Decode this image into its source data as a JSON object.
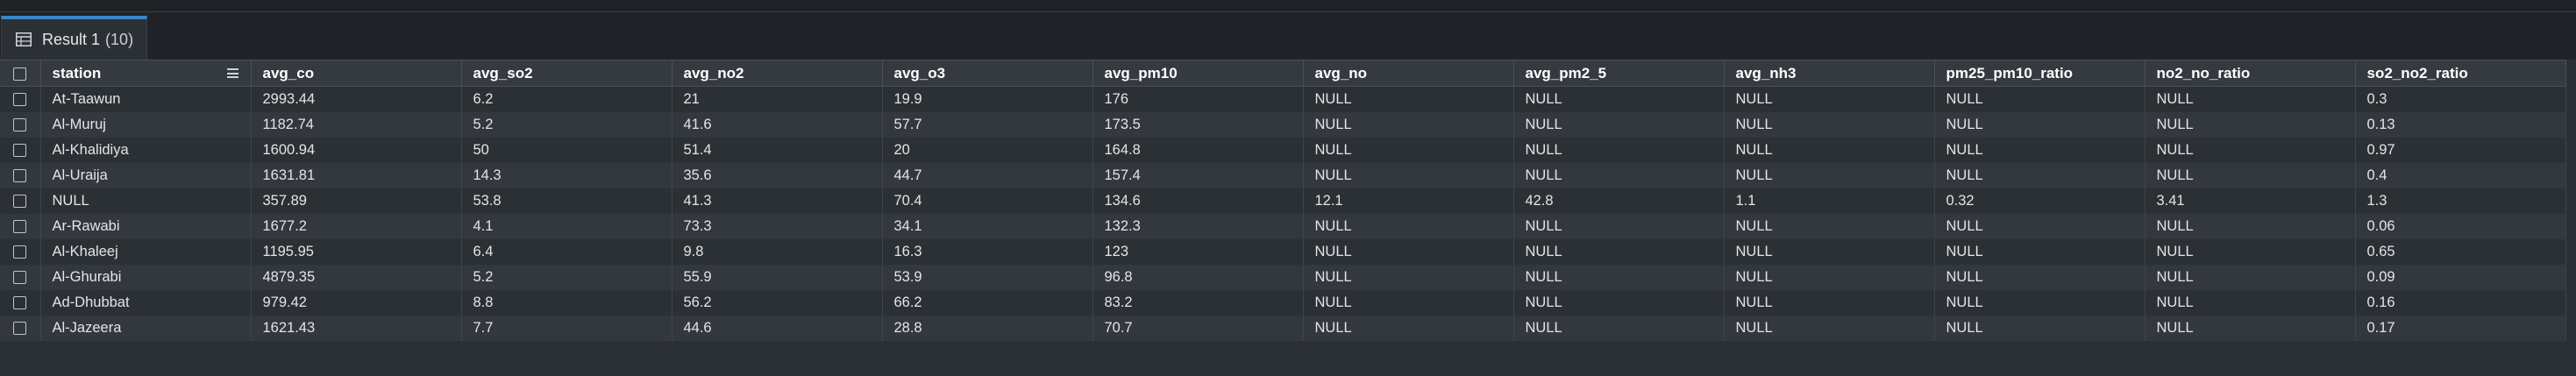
{
  "tab": {
    "label": "Result 1",
    "count": "(10)"
  },
  "columns": [
    {
      "key": "station",
      "label": "station"
    },
    {
      "key": "avg_co",
      "label": "avg_co"
    },
    {
      "key": "avg_so2",
      "label": "avg_so2"
    },
    {
      "key": "avg_no2",
      "label": "avg_no2"
    },
    {
      "key": "avg_o3",
      "label": "avg_o3"
    },
    {
      "key": "avg_pm10",
      "label": "avg_pm10"
    },
    {
      "key": "avg_no",
      "label": "avg_no"
    },
    {
      "key": "avg_pm2_5",
      "label": "avg_pm2_5"
    },
    {
      "key": "avg_nh3",
      "label": "avg_nh3"
    },
    {
      "key": "pm25_pm10_ratio",
      "label": "pm25_pm10_ratio"
    },
    {
      "key": "no2_no_ratio",
      "label": "no2_no_ratio"
    },
    {
      "key": "so2_no2_ratio",
      "label": "so2_no2_ratio"
    }
  ],
  "rows": [
    [
      "At-Taawun",
      "2993.44",
      "6.2",
      "21",
      "19.9",
      "176",
      "NULL",
      "NULL",
      "NULL",
      "NULL",
      "NULL",
      "0.3"
    ],
    [
      "Al-Muruj",
      "1182.74",
      "5.2",
      "41.6",
      "57.7",
      "173.5",
      "NULL",
      "NULL",
      "NULL",
      "NULL",
      "NULL",
      "0.13"
    ],
    [
      "Al-Khalidiya",
      "1600.94",
      "50",
      "51.4",
      "20",
      "164.8",
      "NULL",
      "NULL",
      "NULL",
      "NULL",
      "NULL",
      "0.97"
    ],
    [
      "Al-Uraija",
      "1631.81",
      "14.3",
      "35.6",
      "44.7",
      "157.4",
      "NULL",
      "NULL",
      "NULL",
      "NULL",
      "NULL",
      "0.4"
    ],
    [
      "NULL",
      "357.89",
      "53.8",
      "41.3",
      "70.4",
      "134.6",
      "12.1",
      "42.8",
      "1.1",
      "0.32",
      "3.41",
      "1.3"
    ],
    [
      "Ar-Rawabi",
      "1677.2",
      "4.1",
      "73.3",
      "34.1",
      "132.3",
      "NULL",
      "NULL",
      "NULL",
      "NULL",
      "NULL",
      "0.06"
    ],
    [
      "Al-Khaleej",
      "1195.95",
      "6.4",
      "9.8",
      "16.3",
      "123",
      "NULL",
      "NULL",
      "NULL",
      "NULL",
      "NULL",
      "0.65"
    ],
    [
      "Al-Ghurabi",
      "4879.35",
      "5.2",
      "55.9",
      "53.9",
      "96.8",
      "NULL",
      "NULL",
      "NULL",
      "NULL",
      "NULL",
      "0.09"
    ],
    [
      "Ad-Dhubbat",
      "979.42",
      "8.8",
      "56.2",
      "66.2",
      "83.2",
      "NULL",
      "NULL",
      "NULL",
      "NULL",
      "NULL",
      "0.16"
    ],
    [
      "Al-Jazeera",
      "1621.43",
      "7.7",
      "44.6",
      "28.8",
      "70.7",
      "NULL",
      "NULL",
      "NULL",
      "NULL",
      "NULL",
      "0.17"
    ]
  ]
}
